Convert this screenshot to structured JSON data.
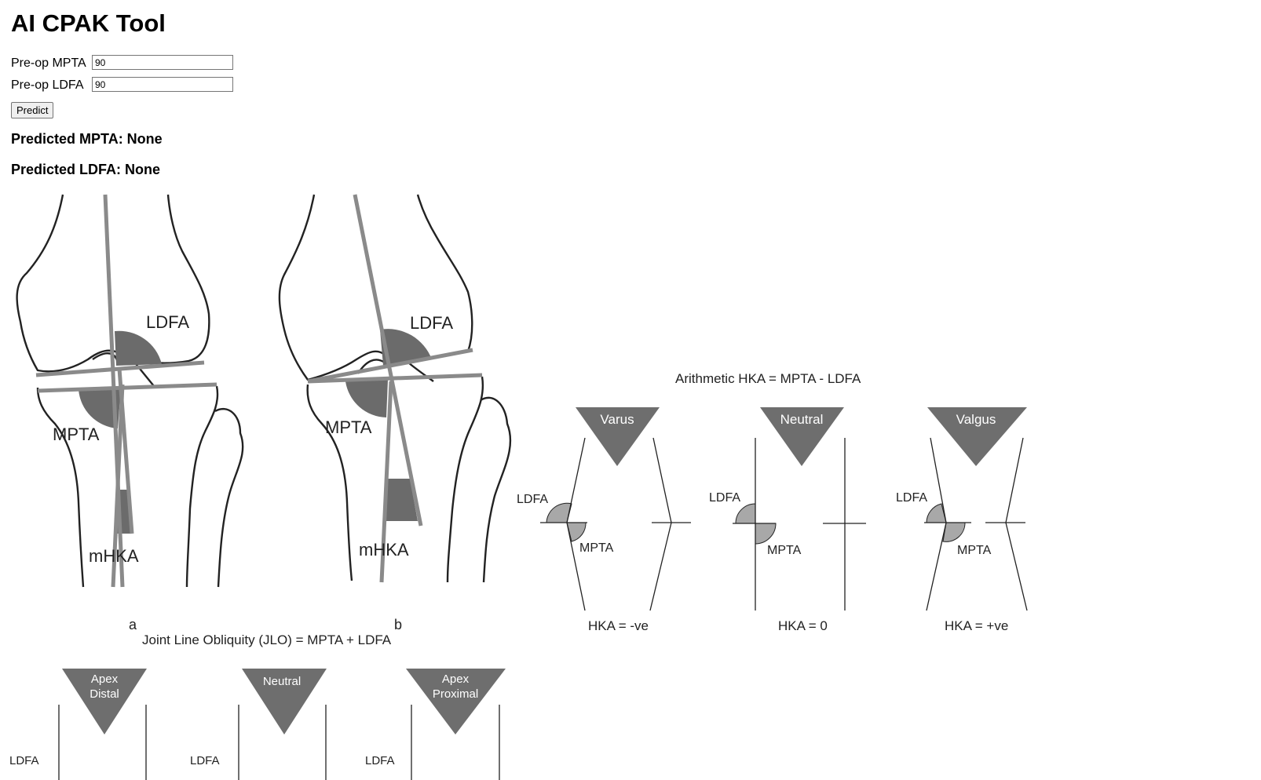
{
  "app": {
    "title": "AI CPAK Tool"
  },
  "form": {
    "mpta_label": "Pre-op MPTA",
    "mpta_value": "90",
    "ldfa_label": "Pre-op LDFA",
    "ldfa_value": "90",
    "predict_label": "Predict"
  },
  "results": {
    "mpta": "Predicted MPTA: None",
    "ldfa": "Predicted LDFA: None"
  },
  "figure": {
    "knee_a": {
      "ldfa": "LDFA",
      "mpta": "MPTA",
      "mhka": "mHKA",
      "caption": "a"
    },
    "knee_b": {
      "ldfa": "LDFA",
      "mpta": "MPTA",
      "mhka": "mHKA",
      "caption": "b"
    },
    "hka": {
      "title": "Arithmetic HKA = MPTA - LDFA",
      "panels": [
        {
          "label": "Varus",
          "ldfa": "LDFA",
          "mpta": "MPTA",
          "formula": "HKA = -ve"
        },
        {
          "label": "Neutral",
          "ldfa": "LDFA",
          "mpta": "MPTA",
          "formula": "HKA = 0"
        },
        {
          "label": "Valgus",
          "ldfa": "LDFA",
          "mpta": "MPTA",
          "formula": "HKA = +ve"
        }
      ]
    },
    "jlo": {
      "title": "Joint Line Obliquity (JLO) = MPTA + LDFA",
      "panels": [
        {
          "label_line1": "Apex",
          "label_line2": "Distal",
          "ldfa": "LDFA"
        },
        {
          "label_line1": "Neutral",
          "label_line2": "",
          "ldfa": "LDFA"
        },
        {
          "label_line1": "Apex",
          "label_line2": "Proximal",
          "ldfa": "LDFA"
        }
      ]
    }
  },
  "colors": {
    "triangle": "#6e6e6e",
    "axis_line": "#8a8a8a",
    "angle_fill_dark": "#6b6b6b",
    "angle_fill_light": "#a8a8a8"
  }
}
